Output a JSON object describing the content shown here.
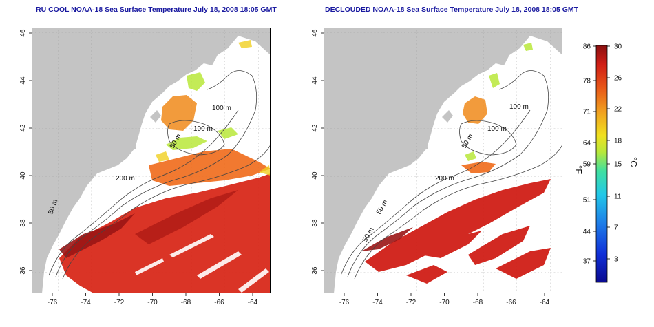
{
  "maps": [
    {
      "title": "RU COOL NOAA-18 Sea Surface Temperature July 18, 2008 18:05 GMT",
      "depth_labels": [
        "100 m",
        "100 m",
        "50 m",
        "200 m",
        "50 m"
      ]
    },
    {
      "title": "DECLOUDED NOAA-18 Sea Surface Temperature July 18, 2008 18:05 GMT",
      "depth_labels": [
        "100 m",
        "100 m",
        "50 m",
        "200 m",
        "50 m",
        "50 m"
      ]
    }
  ],
  "axes": {
    "lat_ticks": [
      "46",
      "44",
      "42",
      "40",
      "38",
      "36"
    ],
    "lon_ticks": [
      "-76",
      "-74",
      "-72",
      "-70",
      "-68",
      "-66",
      "-64"
    ]
  },
  "colorbar": {
    "f_ticks": [
      "86",
      "78",
      "71",
      "64",
      "59",
      "51",
      "44",
      "37"
    ],
    "c_ticks": [
      "30",
      "26",
      "22",
      "18",
      "15",
      "11",
      "7",
      "3"
    ],
    "f_label": "°F",
    "c_label": "°C"
  },
  "colors": {
    "land": "#c4c4c4",
    "title": "#1a1aa0",
    "contour": "#444444",
    "warm": "#d8291a",
    "hot": "#8a1010",
    "mid": "#f08a1a",
    "cool": "#b8e83a"
  }
}
